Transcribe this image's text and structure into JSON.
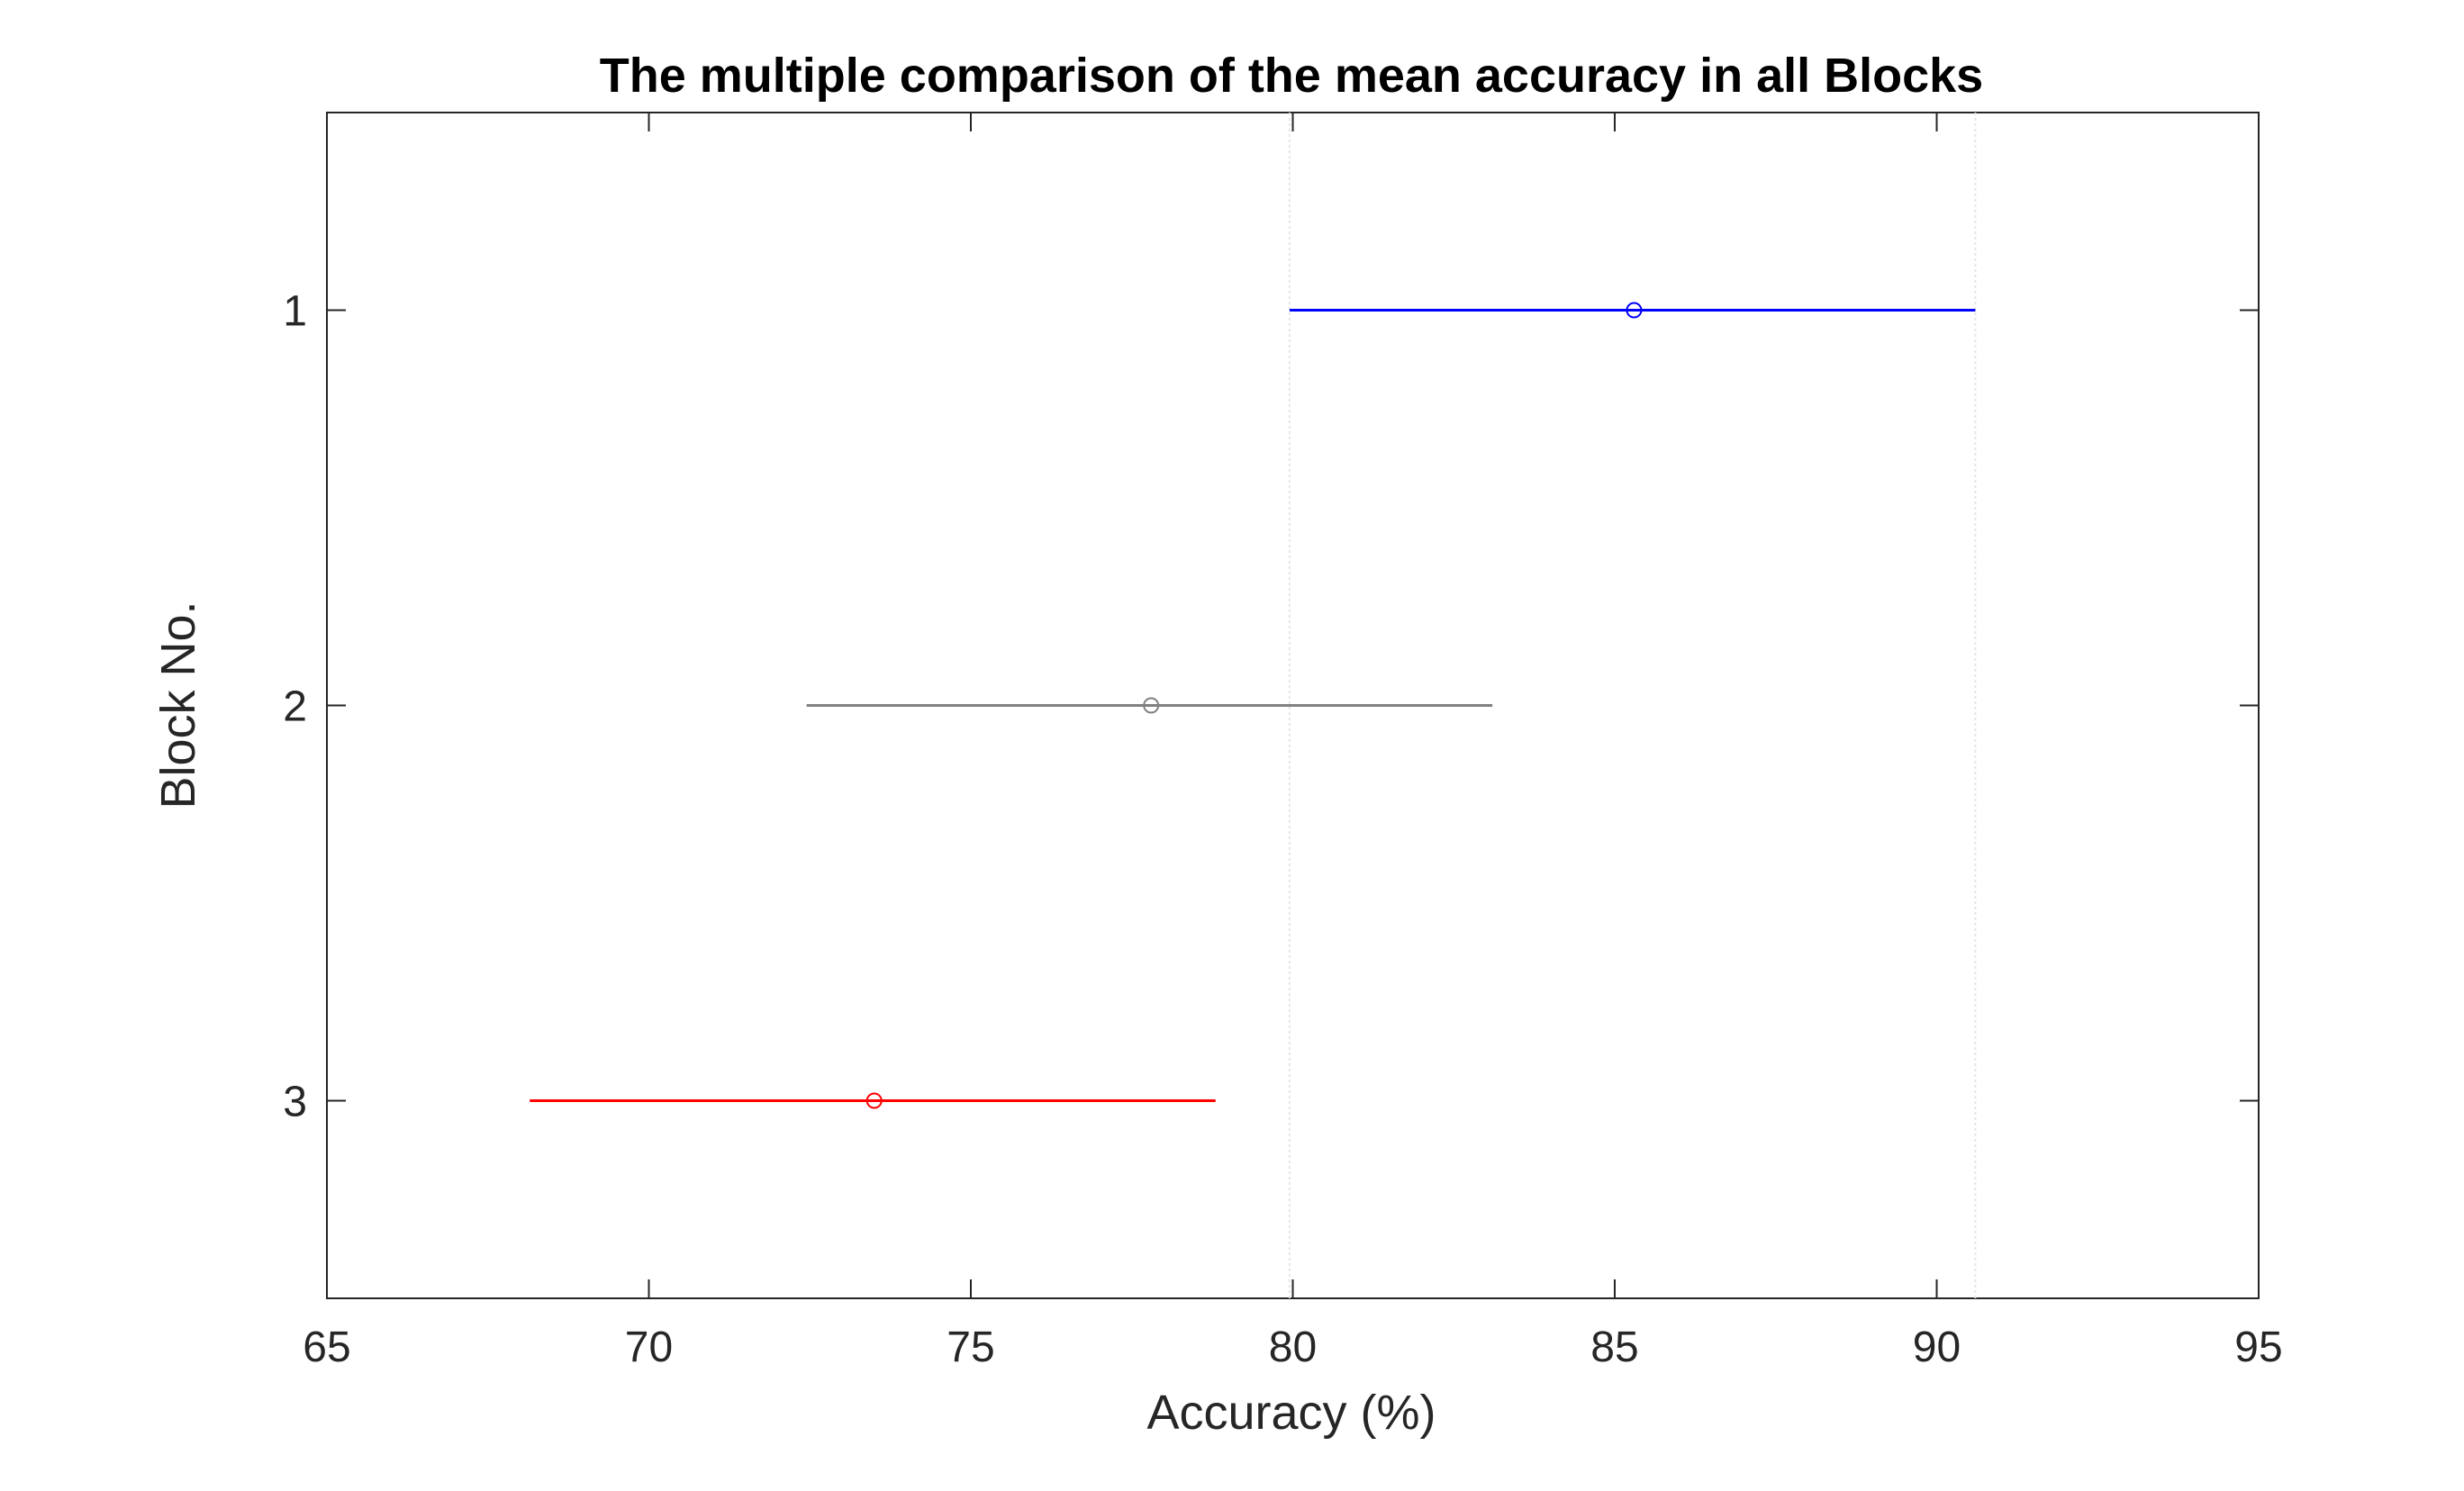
{
  "chart_data": {
    "type": "errorbar-horizontal",
    "title": "The multiple comparison of the mean accuracy in all Blocks",
    "xlabel": "Accuracy (%)",
    "ylabel": "Block No.",
    "xlim": [
      65,
      95
    ],
    "ylim": [
      0.5,
      3.5
    ],
    "x_ticks": [
      "65",
      "70",
      "75",
      "80",
      "85",
      "90",
      "95"
    ],
    "y_ticks": [
      "1",
      "2",
      "3"
    ],
    "reference_lines_x": [
      79.95,
      90.6
    ],
    "groups": [
      {
        "label": "1",
        "y": 1,
        "mean": 85.3,
        "lower": 79.95,
        "upper": 90.6,
        "color": "#0000ff"
      },
      {
        "label": "2",
        "y": 2,
        "mean": 77.8,
        "lower": 72.45,
        "upper": 83.1,
        "color": "#808080"
      },
      {
        "label": "3",
        "y": 3,
        "mean": 73.5,
        "lower": 68.15,
        "upper": 78.8,
        "color": "#ff0000"
      }
    ],
    "grid": false,
    "legend": "none"
  }
}
